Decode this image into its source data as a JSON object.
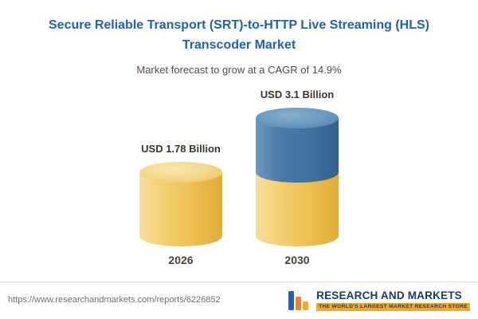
{
  "chart_data": {
    "type": "bar",
    "style": "3d-cylinder",
    "title": "Secure Reliable Transport (SRT)-to-HTTP Live Streaming (HLS) Transcoder Market",
    "subtitle": "Market forecast to grow at a CAGR of 14.9%",
    "categories": [
      "2026",
      "2030"
    ],
    "values": [
      1.78,
      3.1
    ],
    "unit": "USD Billion",
    "bar_labels": [
      "USD 1.78 Billion",
      "USD 3.1 Billion"
    ],
    "cagr_percent": 14.9,
    "ylim": [
      0,
      3.5
    ],
    "grid": false,
    "legend": "none"
  },
  "footer": {
    "url": "https://www.researchandmarkets.com/reports/6226852",
    "logo": {
      "brand": "RESEARCH AND MARKETS",
      "tagline": "THE WORLD'S LARGEST MARKET RESEARCH STORE"
    }
  },
  "colors": {
    "title_blue": "#1E63AE",
    "subtitle_text": "#564A43",
    "label_text": "#3B352E",
    "year_text": "#474139",
    "gold_body": "#EFC45A",
    "gold_cap": "#F5D98F",
    "blue_body": "#3F74A3",
    "blue_cap": "#6C9BC1",
    "url_text": "#6E6E6E",
    "brand_navy": "#1C3A6B",
    "brand_gold": "#F0A92D",
    "brand_orange": "#F58220",
    "divider": "#DCDCDC"
  }
}
